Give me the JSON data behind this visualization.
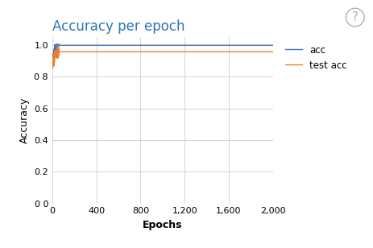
{
  "title": "Accuracy per epoch",
  "xlabel": "Epochs",
  "ylabel": "Accuracy",
  "xlim": [
    0,
    2000
  ],
  "ylim": [
    0.0,
    1.05
  ],
  "yticks": [
    0.0,
    0.2,
    0.4,
    0.6,
    0.8,
    1.0
  ],
  "ytick_labels": [
    "0 0",
    "0.2",
    "0.4",
    "0.6",
    "0 8",
    "1.0"
  ],
  "xticks": [
    0,
    400,
    800,
    1200,
    1600,
    2000
  ],
  "xtick_labels": [
    "0",
    "400",
    "800",
    "1,200",
    "1,600",
    "2,000"
  ],
  "acc_color": "#4472c4",
  "test_acc_color": "#ed7d31",
  "title_color": "#2e75b6",
  "acc_final": 0.999,
  "test_acc_final": 0.958,
  "acc_label": "acc",
  "test_acc_label": "test acc",
  "background_color": "#ffffff",
  "grid_color": "#cccccc",
  "n_epochs": 2000,
  "warmup_epochs": 60
}
